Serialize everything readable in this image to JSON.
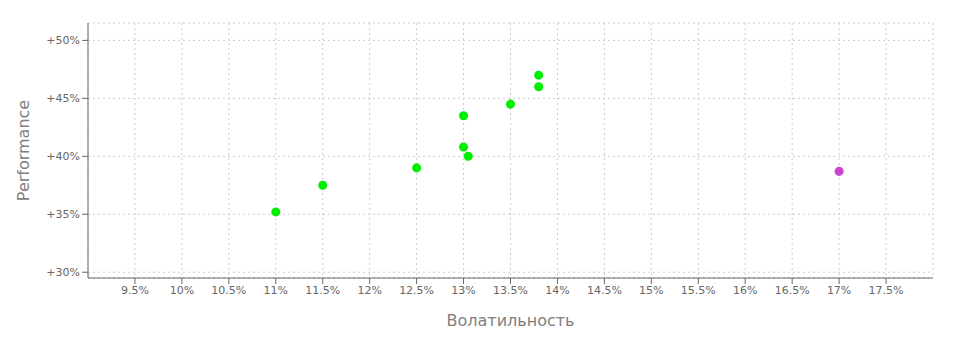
{
  "chart_data": {
    "type": "scatter",
    "xlabel": "Волатильность",
    "ylabel": "Performance",
    "xlim": [
      0.09,
      0.18
    ],
    "ylim": [
      0.295,
      0.515
    ],
    "xticks": [
      {
        "value": 0.095,
        "label": "9.5%"
      },
      {
        "value": 0.1,
        "label": "10%"
      },
      {
        "value": 0.105,
        "label": "10.5%"
      },
      {
        "value": 0.11,
        "label": "11%"
      },
      {
        "value": 0.115,
        "label": "11.5%"
      },
      {
        "value": 0.12,
        "label": "12%"
      },
      {
        "value": 0.125,
        "label": "12.5%"
      },
      {
        "value": 0.13,
        "label": "13%"
      },
      {
        "value": 0.135,
        "label": "13.5%"
      },
      {
        "value": 0.14,
        "label": "14%"
      },
      {
        "value": 0.145,
        "label": "14.5%"
      },
      {
        "value": 0.15,
        "label": "15%"
      },
      {
        "value": 0.155,
        "label": "15.5%"
      },
      {
        "value": 0.16,
        "label": "16%"
      },
      {
        "value": 0.165,
        "label": "16.5%"
      },
      {
        "value": 0.17,
        "label": "17%"
      },
      {
        "value": 0.175,
        "label": "17.5%"
      }
    ],
    "yticks": [
      {
        "value": 0.3,
        "label": "+30%"
      },
      {
        "value": 0.35,
        "label": "+35%"
      },
      {
        "value": 0.4,
        "label": "+40%"
      },
      {
        "value": 0.45,
        "label": "+45%"
      },
      {
        "value": 0.5,
        "label": "+50%"
      }
    ],
    "grid": true,
    "series": [
      {
        "color": "#00ee00",
        "x": [
          0.11,
          0.115,
          0.125,
          0.13,
          0.13,
          0.1305,
          0.135,
          0.138,
          0.138
        ],
        "values": [
          0.352,
          0.375,
          0.39,
          0.435,
          0.408,
          0.4,
          0.445,
          0.47,
          0.46
        ]
      },
      {
        "color": "#cc44cc",
        "x": [
          0.17
        ],
        "values": [
          0.387
        ]
      }
    ]
  }
}
